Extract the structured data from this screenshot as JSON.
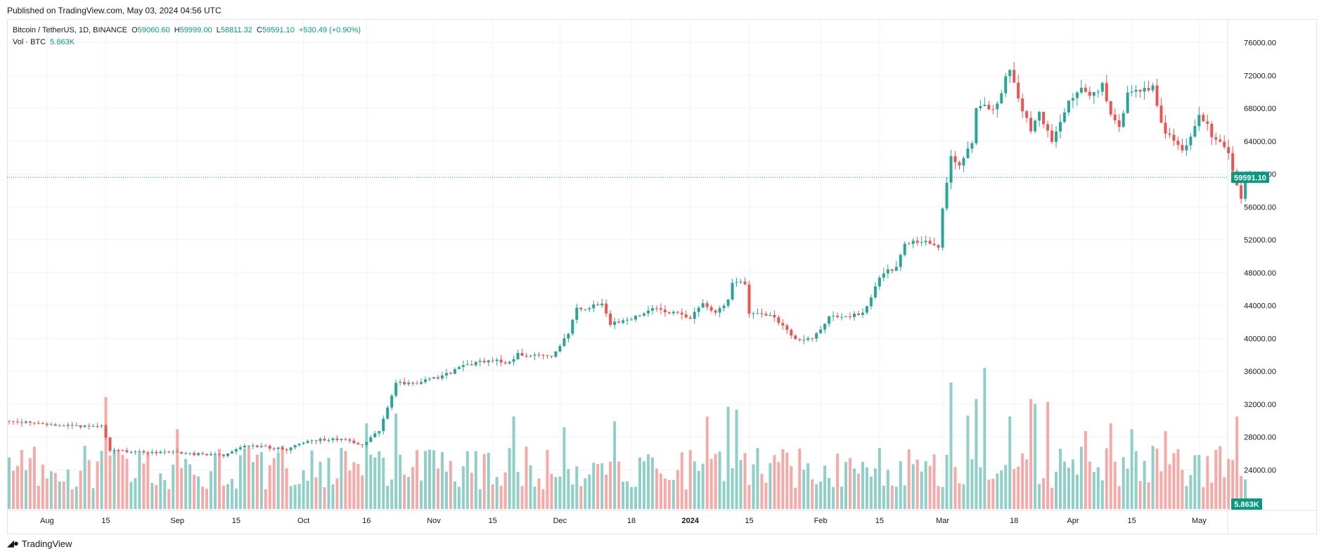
{
  "header": {
    "published": "Published on TradingView.com, May 03, 2024 04:56 UTC"
  },
  "legend": {
    "symbol": "Bitcoin / TetherUS, 1D, BINANCE",
    "o_label": "O",
    "o": "59060.60",
    "h_label": "H",
    "h": "59999.00",
    "l_label": "L",
    "l": "58811.32",
    "c_label": "C",
    "c": "59591.10",
    "change": "+530.49 (+0.90%)",
    "vol_label": "Vol · BTC",
    "vol_value": "5.863K"
  },
  "colors": {
    "up": "#26a69a",
    "down": "#ef5350",
    "vol_up": "#8fcfc7",
    "vol_down": "#f7a9a7",
    "last_price_bg": "#089981",
    "grid": "#f0f3fa",
    "axis_text": "#131722"
  },
  "footer": {
    "brand": "TradingView",
    "logo_icon": "tradingview-logo-icon"
  },
  "chart_data": {
    "type": "candlestick",
    "price_axis": {
      "min": 20000,
      "max": 78000,
      "ticks": [
        "76000.00",
        "72000.00",
        "68000.00",
        "64000.00",
        "60000.00",
        "56000.00",
        "52000.00",
        "48000.00",
        "44000.00",
        "40000.00",
        "36000.00",
        "32000.00",
        "28000.00",
        "24000.00"
      ]
    },
    "last_price": "59591.10",
    "last_volume": "5.863K",
    "x_labels": [
      {
        "label": "Aug",
        "day": 9
      },
      {
        "label": "15",
        "day": 23
      },
      {
        "label": "Sep",
        "day": 40
      },
      {
        "label": "15",
        "day": 54
      },
      {
        "label": "Oct",
        "day": 70
      },
      {
        "label": "16",
        "day": 85
      },
      {
        "label": "Nov",
        "day": 101
      },
      {
        "label": "15",
        "day": 115
      },
      {
        "label": "Dec",
        "day": 131
      },
      {
        "label": "18",
        "day": 148
      },
      {
        "label": "2024",
        "day": 162
      },
      {
        "label": "15",
        "day": 176
      },
      {
        "label": "Feb",
        "day": 193
      },
      {
        "label": "15",
        "day": 207
      },
      {
        "label": "Mar",
        "day": 222
      },
      {
        "label": "18",
        "day": 239
      },
      {
        "label": "Apr",
        "day": 253
      },
      {
        "label": "15",
        "day": 267
      },
      {
        "label": "May",
        "day": 283
      }
    ],
    "anchors": [
      [
        0,
        29900
      ],
      [
        15,
        29300
      ],
      [
        22,
        29300
      ],
      [
        24,
        26300
      ],
      [
        38,
        26100
      ],
      [
        44,
        25900
      ],
      [
        51,
        25800
      ],
      [
        54,
        26600
      ],
      [
        57,
        27000
      ],
      [
        66,
        26500
      ],
      [
        71,
        27600
      ],
      [
        80,
        27800
      ],
      [
        84,
        26900
      ],
      [
        86,
        27900
      ],
      [
        88,
        28800
      ],
      [
        92,
        34500
      ],
      [
        97,
        34600
      ],
      [
        104,
        35600
      ],
      [
        109,
        36800
      ],
      [
        115,
        37400
      ],
      [
        119,
        37000
      ],
      [
        121,
        38000
      ],
      [
        129,
        37800
      ],
      [
        133,
        40500
      ],
      [
        135,
        43600
      ],
      [
        137,
        43800
      ],
      [
        141,
        44200
      ],
      [
        143,
        41800
      ],
      [
        149,
        42500
      ],
      [
        153,
        43700
      ],
      [
        158,
        43200
      ],
      [
        162,
        42500
      ],
      [
        165,
        44200
      ],
      [
        168,
        43000
      ],
      [
        171,
        44800
      ],
      [
        172,
        46800
      ],
      [
        175,
        46600
      ],
      [
        176,
        42800
      ],
      [
        181,
        42800
      ],
      [
        185,
        41000
      ],
      [
        188,
        39600
      ],
      [
        192,
        40400
      ],
      [
        195,
        42500
      ],
      [
        200,
        42700
      ],
      [
        203,
        43000
      ],
      [
        207,
        47500
      ],
      [
        211,
        48800
      ],
      [
        213,
        51800
      ],
      [
        218,
        51700
      ],
      [
        219,
        51200
      ],
      [
        221,
        51000
      ],
      [
        222,
        56000
      ],
      [
        224,
        62000
      ],
      [
        226,
        61400
      ],
      [
        229,
        63500
      ],
      [
        230,
        68000
      ],
      [
        235,
        68300
      ],
      [
        237,
        71500
      ],
      [
        238,
        72800
      ],
      [
        240,
        69000
      ],
      [
        243,
        65500
      ],
      [
        245,
        67500
      ],
      [
        248,
        64000
      ],
      [
        250,
        66500
      ],
      [
        252,
        69200
      ],
      [
        255,
        70200
      ],
      [
        257,
        69500
      ],
      [
        260,
        70700
      ],
      [
        262,
        67000
      ],
      [
        264,
        65500
      ],
      [
        266,
        69600
      ],
      [
        270,
        70300
      ],
      [
        272,
        70600
      ],
      [
        274,
        66000
      ],
      [
        277,
        63800
      ],
      [
        279,
        63000
      ],
      [
        281,
        64500
      ],
      [
        283,
        67000
      ],
      [
        285,
        66400
      ],
      [
        286,
        64200
      ],
      [
        289,
        63300
      ],
      [
        290,
        62900
      ],
      [
        291,
        60100
      ],
      [
        292,
        58500
      ],
      [
        293,
        57200
      ],
      [
        294,
        59060
      ],
      [
        295,
        59591
      ]
    ],
    "vol_axis": {
      "max_btc": 130000
    },
    "volume_spikes": [
      [
        23,
        115000
      ],
      [
        40,
        82000
      ],
      [
        85,
        88000
      ],
      [
        92,
        98000
      ],
      [
        120,
        95000
      ],
      [
        132,
        84000
      ],
      [
        144,
        90000
      ],
      [
        166,
        95000
      ],
      [
        171,
        105000
      ],
      [
        173,
        102000
      ],
      [
        224,
        130000
      ],
      [
        228,
        96000
      ],
      [
        230,
        113000
      ],
      [
        232,
        145000
      ],
      [
        238,
        95000
      ],
      [
        243,
        113000
      ],
      [
        244,
        108000
      ],
      [
        247,
        110000
      ],
      [
        256,
        80000
      ],
      [
        262,
        88000
      ],
      [
        267,
        82000
      ],
      [
        275,
        80000
      ],
      [
        292,
        95000
      ]
    ]
  }
}
